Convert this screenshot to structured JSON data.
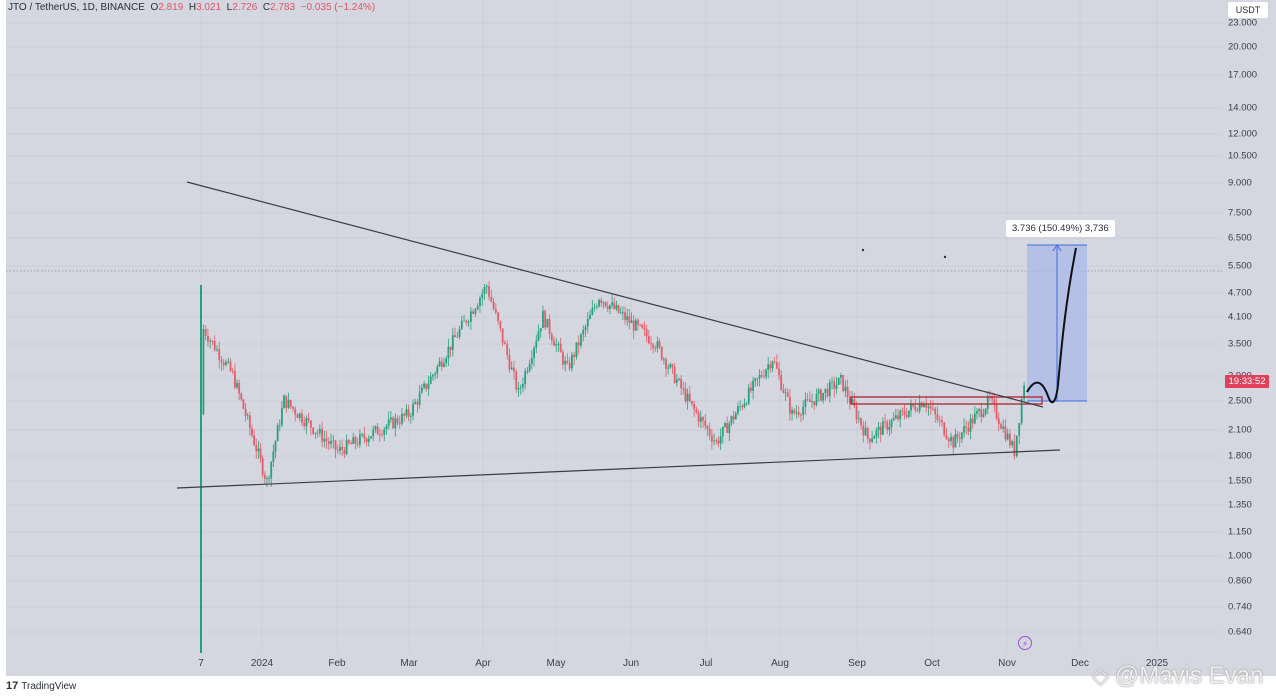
{
  "header": {
    "symbol": "JTO / TetherUS, 1D, BINANCE",
    "open_label": "O",
    "open": "2.819",
    "high_label": "H",
    "high": "3.021",
    "low_label": "L",
    "low": "2.726",
    "close_label": "C",
    "close": "2.783",
    "change": "−0.035 (−1.24%)"
  },
  "price_axis": {
    "currency": "USDT",
    "countdown": "19:33:52",
    "ticks": [
      "23.000",
      "20.000",
      "17.000",
      "14.000",
      "12.000",
      "10.500",
      "9.000",
      "7.500",
      "6.500",
      "5.500",
      "4.700",
      "4.100",
      "3.500",
      "2.900",
      "2.500",
      "2.100",
      "1.800",
      "1.550",
      "1.350",
      "1.150",
      "1.000",
      "0.860",
      "0.740",
      "0.640"
    ]
  },
  "time_axis": {
    "ticks": [
      "7",
      "2024",
      "Feb",
      "Mar",
      "Apr",
      "May",
      "Jun",
      "Jul",
      "Aug",
      "Sep",
      "Oct",
      "Nov",
      "Dec",
      "2025"
    ]
  },
  "measure_tool": {
    "label": "3.736 (150.49%) 3,736"
  },
  "footer": {
    "brand_logo": "17",
    "brand": "TradingView"
  },
  "watermark": {
    "text": "@Mavis Evan"
  },
  "colors": {
    "background": "#d4d7df",
    "up": "#26a17b",
    "down": "#e35d6a",
    "trendline": "#3a3d45",
    "measure_fill": "#a9b8e8",
    "measure_line": "#3f6be0",
    "zone": "#b0303a"
  },
  "chart_data": {
    "type": "candlestick",
    "title": "JTO / TetherUS, 1D, BINANCE",
    "xlabel": "",
    "ylabel": "USDT",
    "y_scale": "log",
    "ylim": [
      0.6,
      24
    ],
    "x": [
      "Dec 7 2023",
      "Dec 2023",
      "Jan 2024",
      "Feb",
      "Mar",
      "Apr",
      "May",
      "Jun",
      "Jul",
      "Aug",
      "Sep",
      "Oct",
      "Nov",
      "Dec",
      "2025"
    ],
    "approx_close_path": [
      {
        "date": "2023-12-07",
        "price": 2.3
      },
      {
        "date": "2023-12-08",
        "price": 3.8
      },
      {
        "date": "2023-12-20",
        "price": 2.9
      },
      {
        "date": "2024-01-03",
        "price": 1.55
      },
      {
        "date": "2024-01-10",
        "price": 2.5
      },
      {
        "date": "2024-02-01",
        "price": 1.85
      },
      {
        "date": "2024-03-01",
        "price": 2.3
      },
      {
        "date": "2024-03-20",
        "price": 3.6
      },
      {
        "date": "2024-04-02",
        "price": 4.9
      },
      {
        "date": "2024-04-15",
        "price": 2.6
      },
      {
        "date": "2024-04-25",
        "price": 4.1
      },
      {
        "date": "2024-05-05",
        "price": 3.0
      },
      {
        "date": "2024-05-18",
        "price": 4.6
      },
      {
        "date": "2024-06-10",
        "price": 3.5
      },
      {
        "date": "2024-06-25",
        "price": 2.4
      },
      {
        "date": "2024-07-05",
        "price": 1.95
      },
      {
        "date": "2024-07-28",
        "price": 3.2
      },
      {
        "date": "2024-08-05",
        "price": 2.3
      },
      {
        "date": "2024-08-25",
        "price": 2.8
      },
      {
        "date": "2024-09-05",
        "price": 2.0
      },
      {
        "date": "2024-09-28",
        "price": 2.5
      },
      {
        "date": "2024-10-10",
        "price": 1.95
      },
      {
        "date": "2024-10-25",
        "price": 2.5
      },
      {
        "date": "2024-11-04",
        "price": 1.85
      },
      {
        "date": "2024-11-08",
        "price": 2.78
      }
    ],
    "annotations": [
      {
        "type": "trendline",
        "name": "descending resistance",
        "from": {
          "date": "2023-12-01",
          "price": 9.0
        },
        "to": {
          "date": "2024-11-15",
          "price": 2.45
        }
      },
      {
        "type": "trendline",
        "name": "ascending support",
        "from": {
          "date": "2023-12-01",
          "price": 1.52
        },
        "to": {
          "date": "2024-11-20",
          "price": 1.87
        }
      },
      {
        "type": "rectangle",
        "name": "resistance zone",
        "price_range": [
          2.45,
          2.6
        ],
        "from": "2024-08-28",
        "to": "2024-11-15"
      },
      {
        "type": "price_range",
        "name": "projected move",
        "from_price": 2.48,
        "to_price": 6.2,
        "label": "3.736 (150.49%) 3,736"
      },
      {
        "type": "path",
        "name": "projected path",
        "description": "retest of ~2.45 then rally to ~6.2"
      }
    ],
    "dotted_hline": 5.3,
    "grid": true,
    "legend_position": "top-left"
  }
}
